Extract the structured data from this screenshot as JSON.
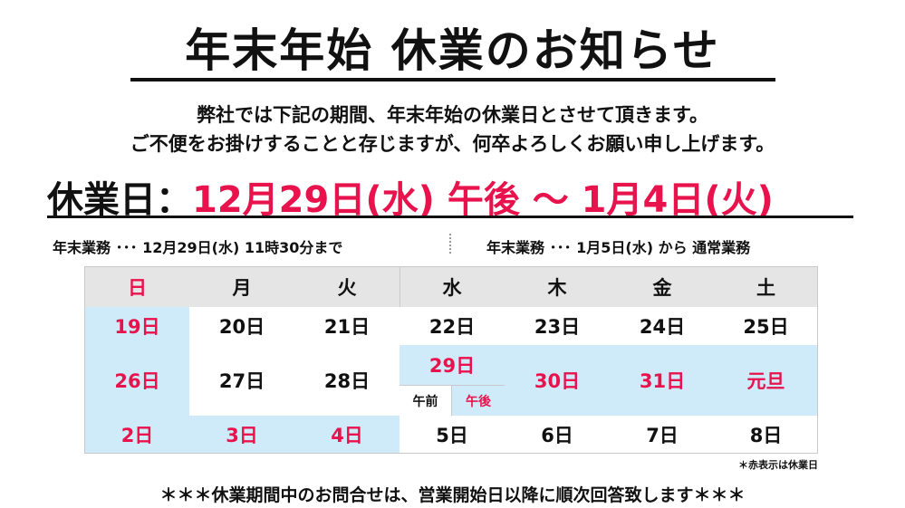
{
  "title": "年末年始 休業のお知らせ",
  "subtitle_line1": "弊社では下記の期間、年末年始の休業日とさせて頂きます。",
  "subtitle_line2": "ご不便をお掛けすることと存じますが、何卒よろしくお願い申し上げます。",
  "holiday": {
    "label": "休業日：",
    "period": "12月29日(水) 午後 ～ 1月4日(火)"
  },
  "notes": {
    "end_of_year": "年末業務 ･･･ 12月29日(水) 11時30分まで",
    "new_year": "年末業務 ･･･ 1月5日(水) から 通常業務"
  },
  "calendar": {
    "weekdays": [
      "日",
      "月",
      "火",
      "水",
      "木",
      "金",
      "土"
    ],
    "week1": [
      "19日",
      "20日",
      "21日",
      "22日",
      "23日",
      "24日",
      "25日"
    ],
    "week2": {
      "sun": "26日",
      "mon": "27日",
      "tue": "28日",
      "wed": "29日",
      "wed_am": "午前",
      "wed_pm": "午後",
      "thu": "30日",
      "fri": "31日",
      "sat": "元旦"
    },
    "week3": [
      "2日",
      "3日",
      "4日",
      "5日",
      "6日",
      "7日",
      "8日"
    ]
  },
  "legend_note": "＊赤表示は休業日",
  "footer": "＊＊＊休業期間中のお問合せは、営業開始日以降に順次回答致します＊＊＊",
  "colors": {
    "red": "#e8124c",
    "highlight": "#cfeaf8",
    "header_bg": "#e5e5e5"
  }
}
